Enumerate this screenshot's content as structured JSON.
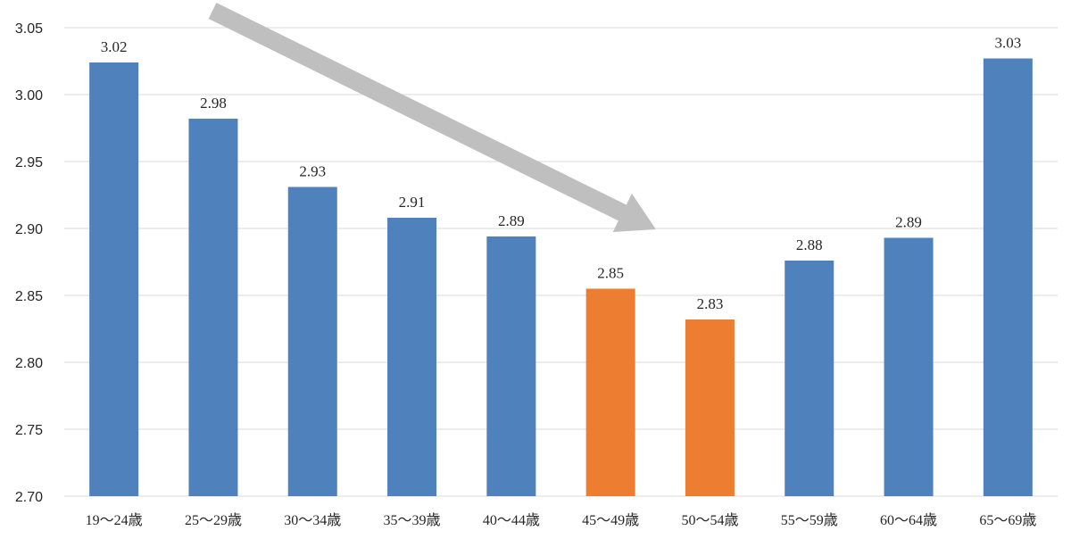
{
  "chart_data": {
    "type": "bar",
    "title": "",
    "xlabel": "",
    "ylabel": "",
    "ylim": [
      2.7,
      3.05
    ],
    "yticks": [
      "2.70",
      "2.75",
      "2.80",
      "2.85",
      "2.90",
      "2.95",
      "3.00",
      "3.05"
    ],
    "categories": [
      "19～24歳",
      "25～29歳",
      "30～34歳",
      "35～39歳",
      "40～44歳",
      "45～49歳",
      "50～54歳",
      "55～59歳",
      "60～64歳",
      "65～69歳"
    ],
    "values": [
      3.024,
      2.982,
      2.931,
      2.908,
      2.894,
      2.855,
      2.832,
      2.876,
      2.893,
      3.027
    ],
    "data_labels": [
      "3.02",
      "2.98",
      "2.93",
      "2.91",
      "2.89",
      "2.85",
      "2.83",
      "2.88",
      "2.89",
      "3.03"
    ],
    "highlighted_categories": [
      "45～49歳",
      "50～54歳"
    ],
    "grid": true,
    "legend": "none",
    "annotation": "downward trend arrow from top-left pointing toward 50～54歳",
    "colors": {
      "bar": "#4f81bd",
      "highlight": "#ed7d31",
      "arrow": "#bfbfbf"
    }
  }
}
